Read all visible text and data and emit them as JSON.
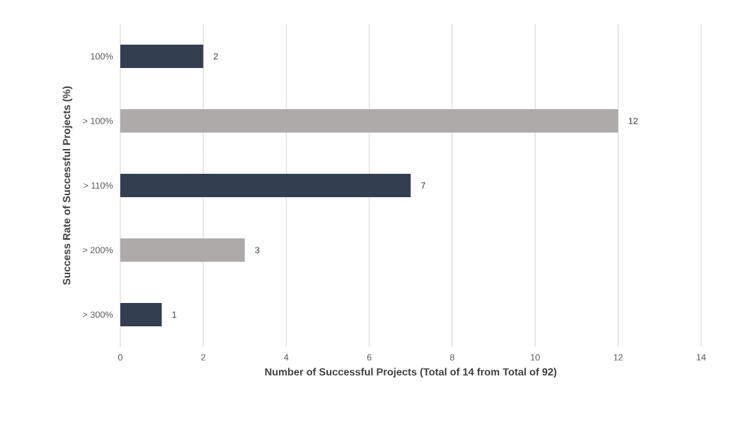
{
  "chart_data": {
    "type": "bar",
    "orientation": "horizontal",
    "xlabel": "Number of Successful Projects (Total of 14 from Total of 92)",
    "ylabel": "Success Rate of Successful Projects (%)",
    "categories": [
      "100%",
      "> 100%",
      "> 110%",
      "> 200%",
      "> 300%"
    ],
    "values": [
      2,
      12,
      7,
      3,
      1
    ],
    "colors": [
      "#333f50",
      "#aeaaaa",
      "#333f50",
      "#aeaaaa",
      "#333f50"
    ],
    "xlim": [
      0,
      14
    ],
    "xticks": [
      0,
      2,
      4,
      6,
      8,
      10,
      12,
      14
    ],
    "grid": "x",
    "data_labels": true
  }
}
